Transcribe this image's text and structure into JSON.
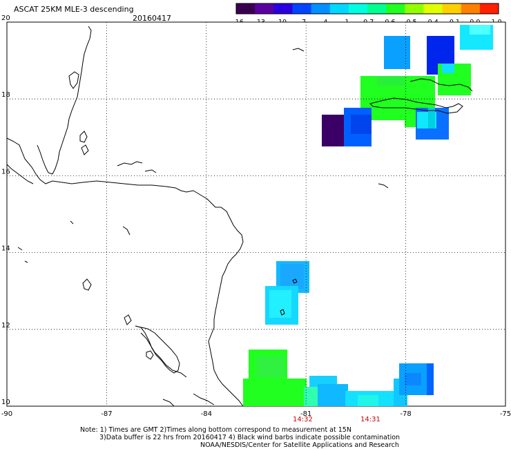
{
  "header": {
    "title": "ASCAT 25KM MLE-3 descending",
    "date": "20160417"
  },
  "colorbar": {
    "colors": [
      "#3a0050",
      "#5a00a0",
      "#2a00e0",
      "#0044ff",
      "#0090ff",
      "#00d8ff",
      "#00ffe0",
      "#00ff90",
      "#20ff20",
      "#90ff00",
      "#e0ff00",
      "#ffd000",
      "#ff8000",
      "#ff2000"
    ],
    "labels": [
      "-16",
      "-13",
      "-10",
      "-7",
      "-4",
      "-1",
      "-0.7",
      "-0.6",
      "-0.5",
      "-0.4",
      "-0.1",
      "0.0",
      "1.0"
    ]
  },
  "axes": {
    "lon_ticks": [
      "-90",
      "-87",
      "-84",
      "-81",
      "-78",
      "-75"
    ],
    "lat_ticks": [
      "20",
      "18",
      "16",
      "14",
      "12",
      "10"
    ]
  },
  "time_labels": [
    "14:32",
    "14:31"
  ],
  "notes": {
    "line1": "Note: 1) Times are GMT 2)Times along bottom correspond to measurement at 15N",
    "line2": "3)Data buffer is 22 hrs from 20160417 4) Black wind barbs indicate possible contamination",
    "line3": "NOAA/NESDIS/Center for Satellite Applications and Research"
  },
  "colors": {
    "grid": "#000000",
    "time_label": "#cc0000",
    "coast": "#000000"
  }
}
